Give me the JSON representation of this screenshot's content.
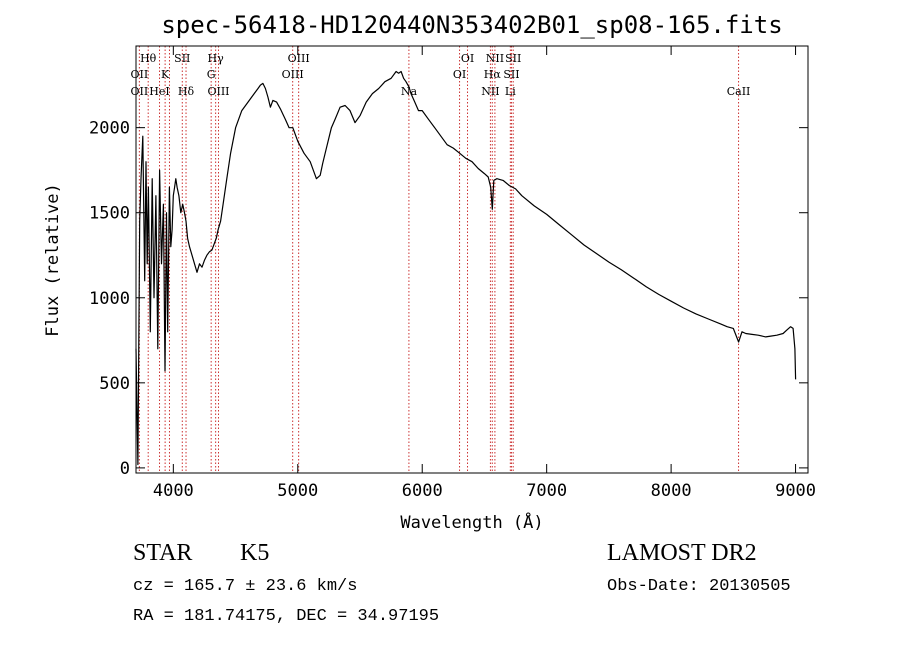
{
  "chart_data": {
    "type": "line",
    "title": "spec-56418-HD120440N353402B01_sp08-165.fits",
    "xlabel": "Wavelength (Å)",
    "ylabel": "Flux (relative)",
    "xlim": [
      3700,
      9100
    ],
    "ylim": [
      -30,
      2480
    ],
    "x_ticks": [
      4000,
      5000,
      6000,
      7000,
      8000,
      9000
    ],
    "y_ticks": [
      0,
      500,
      1000,
      1500,
      2000
    ],
    "grid": false,
    "line_color": "#000000",
    "marker_color": "#cc3333",
    "series": [
      {
        "x": [
          3700,
          3715,
          3730,
          3740,
          3755,
          3770,
          3780,
          3790,
          3800,
          3815,
          3830,
          3845,
          3860,
          3875,
          3890,
          3905,
          3920,
          3933,
          3945,
          3955,
          3968,
          3980,
          3990,
          4000,
          4010,
          4020,
          4030,
          4045,
          4060,
          4075,
          4090,
          4102,
          4115,
          4130,
          4150,
          4170,
          4190,
          4210,
          4230,
          4250,
          4270,
          4290,
          4310,
          4330,
          4345,
          4360,
          4380,
          4400,
          4430,
          4460,
          4500,
          4550,
          4600,
          4650,
          4680,
          4700,
          4720,
          4740,
          4760,
          4780,
          4800,
          4830,
          4860,
          4880,
          4900,
          4930,
          4960,
          5000,
          5050,
          5100,
          5150,
          5180,
          5200,
          5230,
          5270,
          5300,
          5340,
          5380,
          5420,
          5460,
          5500,
          5550,
          5600,
          5650,
          5700,
          5750,
          5790,
          5810,
          5830,
          5850,
          5870,
          5893,
          5910,
          5940,
          5970,
          6000,
          6050,
          6100,
          6150,
          6200,
          6250,
          6300,
          6350,
          6400,
          6450,
          6500,
          6530,
          6550,
          6563,
          6575,
          6600,
          6650,
          6700,
          6750,
          6800,
          6900,
          7000,
          7100,
          7200,
          7300,
          7400,
          7500,
          7600,
          7700,
          7800,
          7900,
          8000,
          8100,
          8200,
          8300,
          8400,
          8450,
          8500,
          8542,
          8570,
          8600,
          8650,
          8700,
          8760,
          8800,
          8850,
          8900,
          8930,
          8960,
          8980,
          8995,
          9000
        ],
        "y": [
          700,
          20,
          1450,
          1700,
          1950,
          1100,
          1800,
          1200,
          1650,
          800,
          1700,
          1000,
          1600,
          700,
          1750,
          1200,
          1550,
          570,
          1500,
          800,
          1650,
          1300,
          1400,
          1600,
          1650,
          1700,
          1650,
          1600,
          1500,
          1550,
          1500,
          1450,
          1350,
          1300,
          1250,
          1200,
          1150,
          1200,
          1180,
          1220,
          1250,
          1270,
          1280,
          1320,
          1350,
          1400,
          1450,
          1550,
          1700,
          1850,
          2000,
          2100,
          2150,
          2200,
          2230,
          2250,
          2260,
          2230,
          2180,
          2120,
          2160,
          2150,
          2110,
          2080,
          2050,
          2000,
          2000,
          1920,
          1850,
          1800,
          1700,
          1720,
          1790,
          1880,
          2000,
          2050,
          2120,
          2130,
          2100,
          2030,
          2070,
          2150,
          2200,
          2230,
          2270,
          2290,
          2330,
          2320,
          2330,
          2290,
          2270,
          2240,
          2200,
          2150,
          2100,
          2100,
          2050,
          2000,
          1950,
          1900,
          1880,
          1850,
          1820,
          1800,
          1760,
          1730,
          1710,
          1650,
          1520,
          1690,
          1700,
          1690,
          1660,
          1640,
          1600,
          1540,
          1490,
          1430,
          1370,
          1310,
          1260,
          1210,
          1165,
          1115,
          1065,
          1020,
          980,
          940,
          905,
          875,
          845,
          830,
          820,
          740,
          800,
          790,
          785,
          780,
          770,
          775,
          780,
          790,
          810,
          830,
          820,
          700,
          520
        ]
      }
    ],
    "lines_top": [
      {
        "x": 3727,
        "labels": [
          "OII",
          "OII"
        ],
        "rows": [
          2,
          3
        ]
      },
      {
        "x": 3798,
        "labels": [
          "Hθ"
        ],
        "rows": [
          1
        ]
      },
      {
        "x": 3889,
        "labels": [
          "HeI"
        ],
        "rows": [
          3
        ]
      },
      {
        "x": 3934,
        "labels": [
          "K"
        ],
        "rows": [
          2
        ]
      },
      {
        "x": 3969,
        "labels": [],
        "rows": []
      },
      {
        "x": 4072,
        "labels": [
          "SII"
        ],
        "rows": [
          1
        ]
      },
      {
        "x": 4102,
        "labels": [
          "Hδ"
        ],
        "rows": [
          3
        ]
      },
      {
        "x": 4304,
        "labels": [
          "G"
        ],
        "rows": [
          2
        ]
      },
      {
        "x": 4340,
        "labels": [
          "Hγ"
        ],
        "rows": [
          1
        ]
      },
      {
        "x": 4363,
        "labels": [
          "OIII"
        ],
        "rows": [
          3
        ]
      },
      {
        "x": 4959,
        "labels": [
          "OIII"
        ],
        "rows": [
          2
        ]
      },
      {
        "x": 5007,
        "labels": [
          "OIII"
        ],
        "rows": [
          1
        ]
      },
      {
        "x": 5893,
        "labels": [
          "Na"
        ],
        "rows": [
          3
        ]
      },
      {
        "x": 6300,
        "labels": [
          "OI"
        ],
        "rows": [
          2
        ]
      },
      {
        "x": 6364,
        "labels": [
          "OI"
        ],
        "rows": [
          1
        ]
      },
      {
        "x": 6548,
        "labels": [
          "NII"
        ],
        "rows": [
          3
        ]
      },
      {
        "x": 6563,
        "labels": [
          "Hα"
        ],
        "rows": [
          2
        ]
      },
      {
        "x": 6584,
        "labels": [
          "NII"
        ],
        "rows": [
          1
        ]
      },
      {
        "x": 6708,
        "labels": [
          "Li"
        ],
        "rows": [
          3
        ]
      },
      {
        "x": 6717,
        "labels": [
          "SII"
        ],
        "rows": [
          2
        ]
      },
      {
        "x": 6731,
        "labels": [
          "SII"
        ],
        "rows": [
          1
        ]
      },
      {
        "x": 8542,
        "labels": [
          "CaII"
        ],
        "rows": [
          3
        ]
      }
    ]
  },
  "footer": {
    "class_label": "STAR",
    "subclass_label": "K5",
    "survey_label": "LAMOST DR2",
    "cz_text": "cz = 165.7 ± 23.6 km/s",
    "obs_date_text": "Obs-Date: 20130505",
    "coords_text": "RA = 181.74175, DEC =  34.97195"
  }
}
